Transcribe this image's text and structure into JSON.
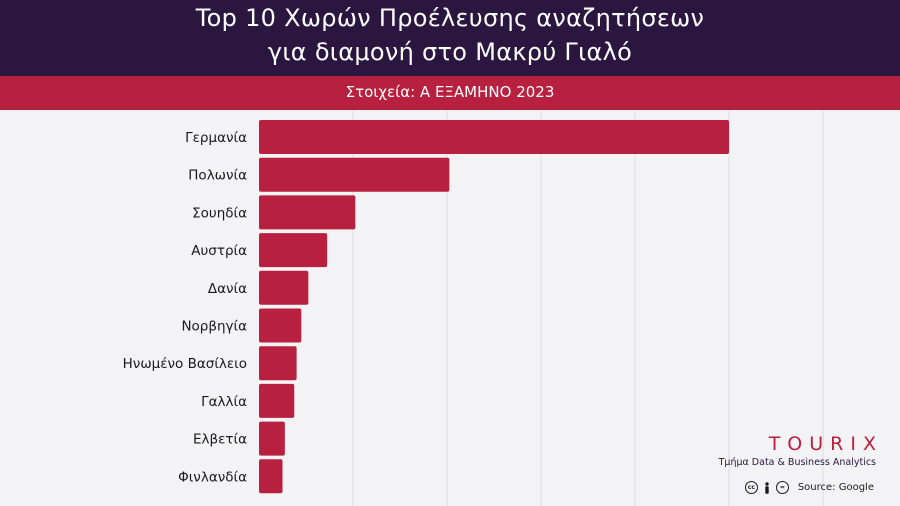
{
  "header": {
    "title_line1": "Top 10 Χωρών Προέλευσης αναζητήσεων",
    "title_line2": "για διαμονή στο Μακρύ Γιαλό",
    "subtitle": "Στοιχεία: Α ΕΞΑΜΗΝΟ 2023"
  },
  "colors": {
    "header_bg": "#2b1640",
    "accent": "#b8203f",
    "background": "#f3f3f5"
  },
  "chart_data": {
    "type": "bar",
    "orientation": "horizontal",
    "categories": [
      "Γερμανία",
      "Πολωνία",
      "Σουηδία",
      "Αυστρία",
      "Δανία",
      "Νορβηγία",
      "Ηνωμένο Βασίλειο",
      "Γαλλία",
      "Ελβετία",
      "Φινλανδία"
    ],
    "values": [
      100,
      40.5,
      20.5,
      14.5,
      10.5,
      9,
      8,
      7.5,
      5.5,
      5
    ],
    "xlim": [
      0,
      120
    ],
    "grid": true,
    "axis_labels_visible": false,
    "bar_color": "#b8203f"
  },
  "branding": {
    "name": "TOURIX",
    "department": "Τμήμα Data & Business Analytics",
    "source": "Source: Google",
    "license_icons": [
      "cc-icon",
      "by-icon",
      "nd-icon"
    ]
  }
}
